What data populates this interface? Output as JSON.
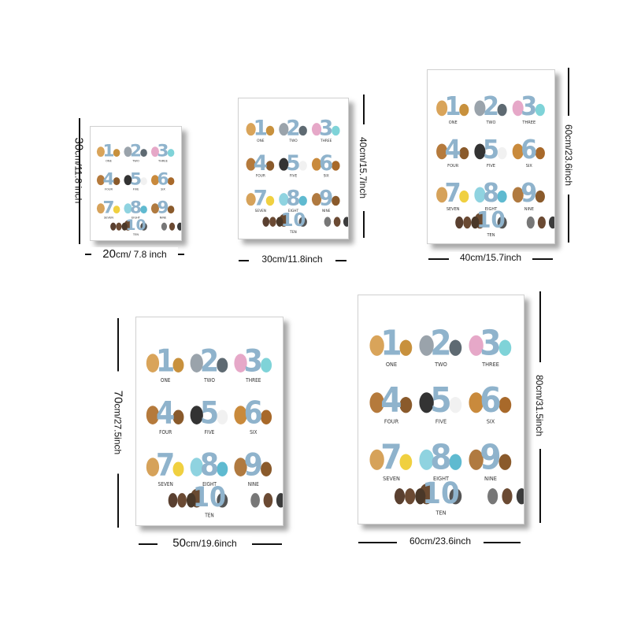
{
  "sizes": [
    {
      "width_label_a": "20",
      "width_label_b": "cm/ 7.8 inch",
      "height_label_a": "30",
      "height_label_b": "cm/11.8 inch"
    },
    {
      "width_label": "30cm/11.8inch",
      "height_label": "40cm/15.7inch"
    },
    {
      "width_label": "40cm/15.7inch",
      "height_label": "60cm/23.6inch"
    },
    {
      "width_label_a": "50",
      "width_label_b": "cm/19.6inch",
      "height_label_a": "70",
      "height_label_b": "cm/27.5inch"
    },
    {
      "width_label": "60cm/23.6inch",
      "height_label": "80cm/31.5inch"
    }
  ],
  "poster": {
    "numbers": [
      "1",
      "2",
      "3",
      "4",
      "5",
      "6",
      "7",
      "8",
      "9",
      "10"
    ],
    "words": [
      "ONE",
      "TWO",
      "THREE",
      "FOUR",
      "FIVE",
      "SIX",
      "SEVEN",
      "EIGHT",
      "NINE",
      "TEN"
    ]
  },
  "colors": {
    "number": "#8fb3cc",
    "shadow": "#333333",
    "frame": "#d0d0d0"
  }
}
